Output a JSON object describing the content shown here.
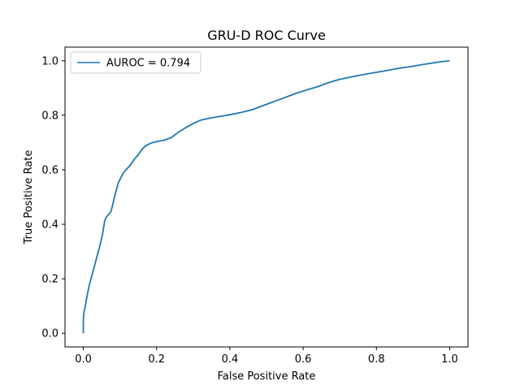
{
  "chart_data": {
    "type": "line",
    "title": "GRU-D ROC Curve",
    "xlabel": "False Positive Rate",
    "ylabel": "True Positive Rate",
    "xlim": [
      -0.05,
      1.05
    ],
    "ylim": [
      -0.05,
      1.05
    ],
    "xticks": [
      0.0,
      0.2,
      0.4,
      0.6,
      0.8,
      1.0
    ],
    "yticks": [
      0.0,
      0.2,
      0.4,
      0.6,
      0.8,
      1.0
    ],
    "xtick_labels": [
      "0.0",
      "0.2",
      "0.4",
      "0.6",
      "0.8",
      "1.0"
    ],
    "ytick_labels": [
      "0.0",
      "0.2",
      "0.4",
      "0.6",
      "0.8",
      "1.0"
    ],
    "grid": false,
    "legend_position": "upper-left",
    "series": [
      {
        "name": "AUROC = 0.794",
        "color": "#1f77b4",
        "x": [
          0.0,
          0.0,
          0.002,
          0.004,
          0.008,
          0.015,
          0.025,
          0.035,
          0.045,
          0.052,
          0.055,
          0.058,
          0.062,
          0.068,
          0.075,
          0.08,
          0.085,
          0.09,
          0.095,
          0.1,
          0.11,
          0.12,
          0.13,
          0.14,
          0.15,
          0.16,
          0.17,
          0.18,
          0.19,
          0.2,
          0.21,
          0.22,
          0.24,
          0.26,
          0.28,
          0.3,
          0.32,
          0.34,
          0.37,
          0.4,
          0.43,
          0.46,
          0.49,
          0.52,
          0.55,
          0.58,
          0.61,
          0.64,
          0.67,
          0.7,
          0.74,
          0.78,
          0.82,
          0.86,
          0.9,
          0.93,
          0.96,
          0.98,
          1.0
        ],
        "y": [
          0.0,
          0.05,
          0.08,
          0.09,
          0.12,
          0.17,
          0.22,
          0.27,
          0.32,
          0.36,
          0.385,
          0.41,
          0.425,
          0.435,
          0.445,
          0.47,
          0.5,
          0.525,
          0.55,
          0.565,
          0.59,
          0.605,
          0.62,
          0.64,
          0.655,
          0.675,
          0.688,
          0.695,
          0.7,
          0.703,
          0.706,
          0.708,
          0.718,
          0.738,
          0.755,
          0.77,
          0.782,
          0.788,
          0.795,
          0.802,
          0.81,
          0.82,
          0.835,
          0.85,
          0.865,
          0.88,
          0.893,
          0.905,
          0.92,
          0.932,
          0.943,
          0.953,
          0.962,
          0.972,
          0.98,
          0.987,
          0.993,
          0.997,
          1.0
        ]
      }
    ]
  }
}
